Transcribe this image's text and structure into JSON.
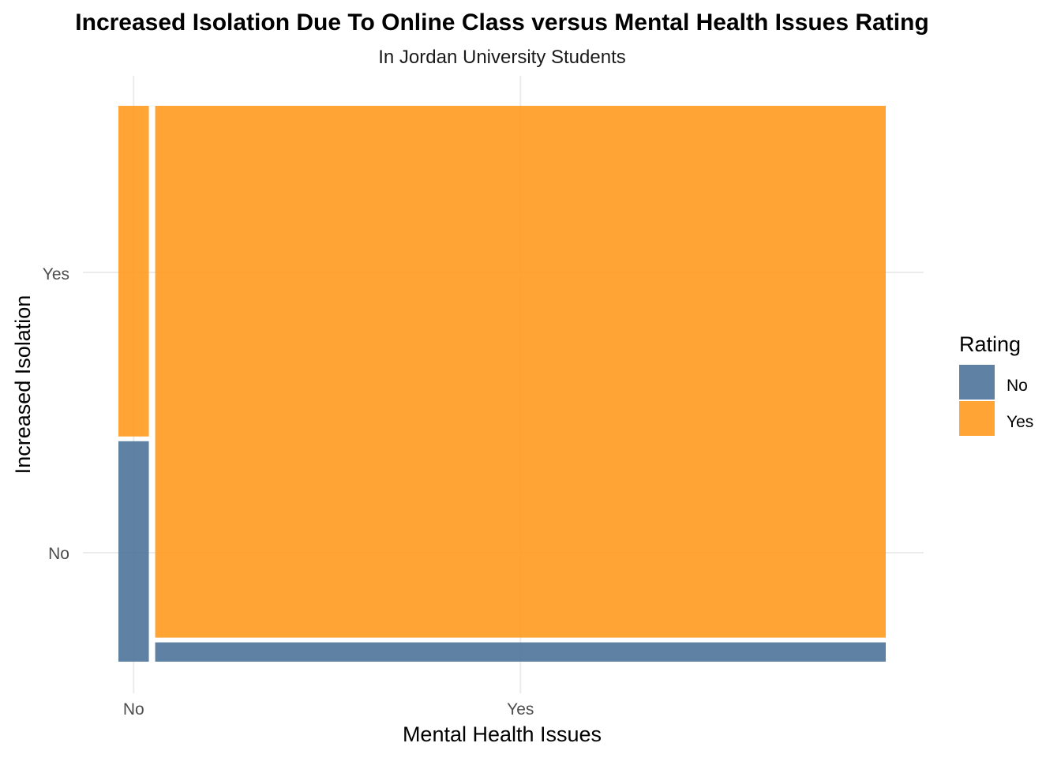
{
  "chart_data": {
    "type": "mosaic",
    "title": "Increased Isolation Due To Online Class versus Mental Health Issues Rating",
    "subtitle": "In Jordan University Students",
    "xlabel": "Mental Health Issues",
    "ylabel": "Increased Isolation",
    "x_categories": [
      "No",
      "Yes"
    ],
    "y_tick_labels": [
      "No",
      "Yes"
    ],
    "x_widths": [
      0.04,
      0.96
    ],
    "legend": {
      "title": "Rating",
      "position": "right",
      "items": [
        {
          "label": "No",
          "color": "#4e7399"
        },
        {
          "label": "Yes",
          "color": "#ff9a1f"
        }
      ]
    },
    "series": [
      {
        "name": "No",
        "values": [
          0.4,
          0.035
        ]
      },
      {
        "name": "Yes",
        "values": [
          0.6,
          0.965
        ]
      }
    ],
    "grid": true
  }
}
